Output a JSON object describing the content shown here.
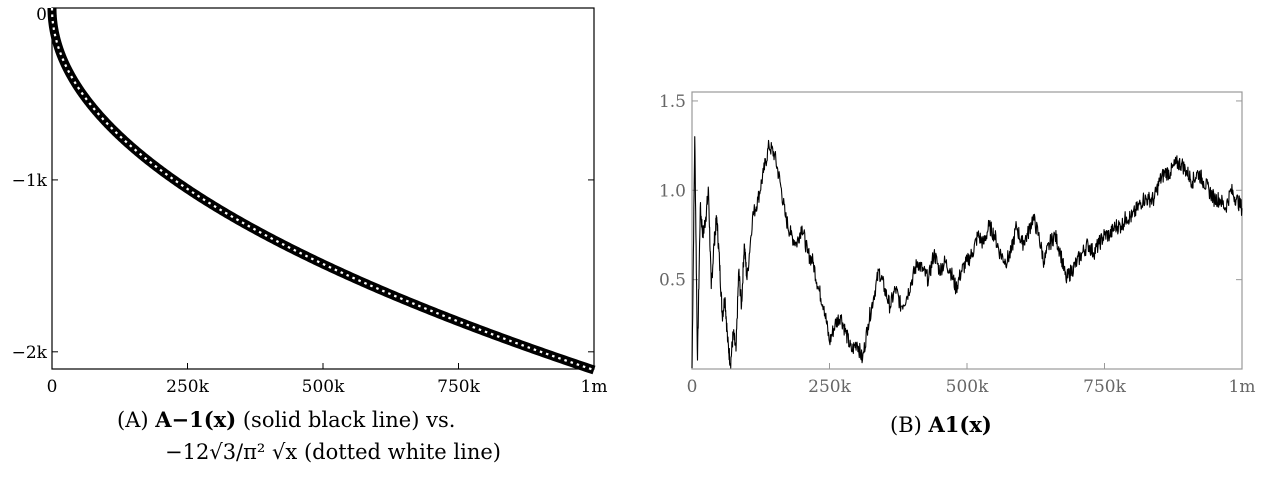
{
  "charts": [
    {
      "chart_data": {
        "type": "line",
        "x_ticks": [
          "0",
          "250k",
          "500k",
          "750k",
          "1m"
        ],
        "y_ticks": [
          "0",
          "−1k",
          "−2k"
        ],
        "x_tick_values": [
          0,
          250000,
          500000,
          750000,
          1000000
        ],
        "y_tick_values": [
          0,
          -1000,
          -2000
        ],
        "xlim": [
          0,
          1000000
        ],
        "ylim": [
          -2100,
          0
        ],
        "series": [
          {
            "style": "solid black",
            "formula": "-12*sqrt(3)/pi^2*sqrt(x)"
          },
          {
            "style": "dotted white",
            "formula": "-12*sqrt(3)/pi^2*sqrt(x)"
          }
        ],
        "grid": false
      },
      "caption": {
        "tag": "(A)",
        "math": "A−1(x)",
        "text1": "(solid black line) vs.",
        "line2_math": "−12√3/π² √x",
        "text2": "(dotted white line)"
      }
    },
    {
      "chart_data": {
        "type": "line",
        "x_ticks": [
          "0",
          "250k",
          "500k",
          "750k",
          "1m"
        ],
        "y_ticks": [
          "0.5",
          "1.0",
          "1.5"
        ],
        "x_tick_values": [
          0,
          250000,
          500000,
          750000,
          1000000
        ],
        "y_tick_values": [
          0.5,
          1.0,
          1.5
        ],
        "xlim": [
          0,
          1000000
        ],
        "ylim": [
          0,
          1.55
        ],
        "series": [
          {
            "x": [
              0,
              5000,
              10000,
              15000,
              20000,
              25000,
              30000,
              35000,
              40000,
              45000,
              50000,
              55000,
              60000,
              65000,
              70000,
              75000,
              80000,
              85000,
              90000,
              95000,
              100000,
              110000,
              120000,
              130000,
              140000,
              150000,
              160000,
              170000,
              180000,
              190000,
              200000,
              210000,
              220000,
              230000,
              240000,
              250000,
              260000,
              270000,
              280000,
              290000,
              300000,
              310000,
              320000,
              330000,
              340000,
              350000,
              360000,
              370000,
              380000,
              390000,
              400000,
              410000,
              420000,
              430000,
              440000,
              450000,
              460000,
              470000,
              480000,
              490000,
              500000,
              510000,
              520000,
              530000,
              540000,
              550000,
              560000,
              570000,
              580000,
              590000,
              600000,
              610000,
              620000,
              630000,
              640000,
              650000,
              660000,
              670000,
              680000,
              690000,
              700000,
              710000,
              720000,
              730000,
              740000,
              750000,
              760000,
              770000,
              780000,
              790000,
              800000,
              810000,
              820000,
              830000,
              840000,
              850000,
              860000,
              870000,
              880000,
              890000,
              900000,
              910000,
              920000,
              930000,
              940000,
              950000,
              960000,
              970000,
              980000,
              990000,
              1000000
            ],
            "y": [
              0.0,
              1.3,
              0.05,
              0.9,
              0.75,
              0.85,
              1.0,
              0.45,
              0.7,
              0.85,
              0.6,
              0.3,
              0.4,
              0.15,
              0.03,
              0.2,
              0.1,
              0.55,
              0.35,
              0.7,
              0.5,
              0.85,
              0.95,
              1.1,
              1.25,
              1.2,
              1.05,
              0.85,
              0.75,
              0.7,
              0.8,
              0.65,
              0.6,
              0.45,
              0.35,
              0.15,
              0.25,
              0.3,
              0.2,
              0.1,
              0.15,
              0.05,
              0.25,
              0.4,
              0.55,
              0.45,
              0.35,
              0.45,
              0.35,
              0.4,
              0.5,
              0.6,
              0.55,
              0.5,
              0.65,
              0.55,
              0.6,
              0.55,
              0.45,
              0.55,
              0.6,
              0.65,
              0.75,
              0.7,
              0.8,
              0.75,
              0.65,
              0.6,
              0.65,
              0.8,
              0.7,
              0.75,
              0.85,
              0.75,
              0.6,
              0.7,
              0.75,
              0.65,
              0.5,
              0.55,
              0.6,
              0.65,
              0.7,
              0.65,
              0.7,
              0.75,
              0.75,
              0.8,
              0.8,
              0.85,
              0.85,
              0.9,
              0.95,
              0.95,
              0.95,
              1.05,
              1.1,
              1.1,
              1.15,
              1.15,
              1.1,
              1.05,
              1.1,
              1.05,
              1.0,
              0.95,
              0.95,
              0.9,
              1.0,
              0.95,
              0.9
            ]
          }
        ],
        "grid": false
      },
      "caption": {
        "tag": "(B)",
        "math": "A1(x)"
      }
    }
  ]
}
